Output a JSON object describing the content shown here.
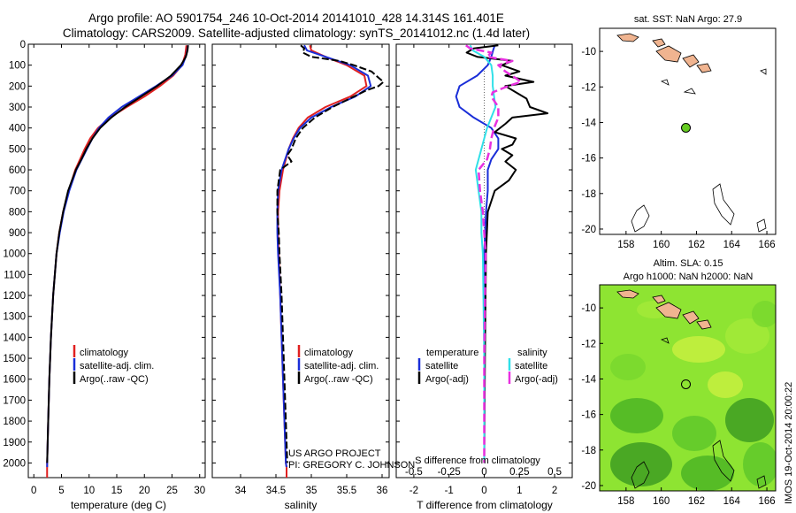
{
  "header": {
    "line1": "Argo profile: AO 5901754_246 10-Oct-2014 20141010_428 14.314S 161.401E",
    "line2": "Climatology: CARS2009. Satellite-adjusted climatology: synTS_20141012.nc (1.4d later)"
  },
  "colors": {
    "climatology": "#e02020",
    "satellite": "#1a2ed8",
    "argo": "#000000",
    "sat_salinity": "#30e0e8",
    "argo_salinity": "#e830e0",
    "land": "#f0b490",
    "marker_fill": "#66cc22"
  },
  "chart_data": [
    {
      "type": "line",
      "id": "temperature",
      "xlabel": "temperature (deg C)",
      "xlim": [
        -1,
        31
      ],
      "xticks": [
        0,
        5,
        10,
        15,
        20,
        25,
        30
      ],
      "ylim": [
        2070,
        0
      ],
      "yticks": [
        0,
        100,
        200,
        300,
        400,
        500,
        600,
        700,
        800,
        900,
        1000,
        1100,
        1200,
        1300,
        1400,
        1500,
        1600,
        1700,
        1800,
        1900,
        2000
      ],
      "legend": [
        "climatology",
        "satellite-adj. clim.",
        "Argo(..raw -QC)"
      ],
      "series": [
        {
          "name": "climatology",
          "color": "climatology",
          "depth": [
            5,
            50,
            100,
            150,
            200,
            250,
            300,
            350,
            400,
            450,
            500,
            600,
            700,
            800,
            900,
            1000,
            1200,
            1400,
            1600,
            1800,
            2000,
            2020
          ],
          "values": [
            27.6,
            27.4,
            26.8,
            25.2,
            22.8,
            20.0,
            16.8,
            13.8,
            11.6,
            10.2,
            9.2,
            7.5,
            6.3,
            5.3,
            4.6,
            4.1,
            3.5,
            3.1,
            2.8,
            2.6,
            2.4,
            2.4
          ]
        },
        {
          "name": "satellite-adj. clim.",
          "color": "satellite",
          "depth": [
            5,
            50,
            100,
            150,
            200,
            250,
            300,
            350,
            400,
            450,
            500,
            600,
            700,
            800,
            900,
            1000,
            1200,
            1400,
            1600,
            1800,
            2000,
            2020
          ],
          "values": [
            27.9,
            27.6,
            26.9,
            25.0,
            22.1,
            19.0,
            15.9,
            13.5,
            11.8,
            10.6,
            9.6,
            7.7,
            6.4,
            5.4,
            4.7,
            4.1,
            3.5,
            3.1,
            2.8,
            2.6,
            2.4,
            2.4
          ]
        },
        {
          "name": "Argo(..raw -QC)",
          "color": "argo",
          "depth": [
            5,
            30,
            60,
            100,
            150,
            200,
            250,
            300,
            350,
            400,
            450,
            500,
            550,
            600,
            700,
            800,
            900,
            1000,
            1200,
            1400,
            1600,
            1800,
            2000
          ],
          "values": [
            27.9,
            27.8,
            27.5,
            26.6,
            24.8,
            22.3,
            19.4,
            16.5,
            14.0,
            12.0,
            10.6,
            9.5,
            8.6,
            7.6,
            6.2,
            5.3,
            4.6,
            4.1,
            3.5,
            3.1,
            2.8,
            2.6,
            2.4
          ]
        }
      ]
    },
    {
      "type": "line",
      "id": "salinity",
      "xlabel": "salinity",
      "xlim": [
        33.6,
        36.1
      ],
      "xticks": [
        34,
        34.5,
        35,
        35.5,
        36
      ],
      "ylim": [
        2070,
        0
      ],
      "legend": [
        "climatology",
        "satellite-adj. clim.",
        "Argo(..raw -QC)"
      ],
      "annotation": [
        "US ARGO PROJECT",
        "PI: GREGORY C. JOHNSON"
      ],
      "series": [
        {
          "name": "climatology",
          "color": "climatology",
          "depth": [
            5,
            30,
            60,
            100,
            150,
            200,
            250,
            300,
            350,
            400,
            450,
            500,
            600,
            700,
            800,
            900,
            1000,
            1200,
            1400,
            1600,
            1800,
            2000,
            2020
          ],
          "values": [
            34.98,
            35.0,
            35.2,
            35.5,
            35.75,
            35.78,
            35.55,
            35.2,
            34.95,
            34.82,
            34.74,
            34.68,
            34.6,
            34.55,
            34.53,
            34.53,
            34.54,
            34.56,
            34.58,
            34.6,
            34.62,
            34.64,
            34.65
          ]
        },
        {
          "name": "satellite-adj. clim.",
          "color": "satellite",
          "depth": [
            5,
            30,
            60,
            100,
            150,
            200,
            250,
            300,
            350,
            400,
            450,
            500,
            600,
            700,
            800,
            900,
            1000,
            1200,
            1400,
            1600,
            1800,
            2000,
            2020
          ],
          "values": [
            34.9,
            34.94,
            35.2,
            35.55,
            35.8,
            35.84,
            35.62,
            35.28,
            35.0,
            34.84,
            34.75,
            34.68,
            34.58,
            34.53,
            34.52,
            34.52,
            34.53,
            34.56,
            34.58,
            34.6,
            34.62,
            34.64,
            34.65
          ]
        },
        {
          "name": "Argo(..raw -QC)",
          "color": "argo",
          "depth": [
            5,
            20,
            40,
            60,
            80,
            100,
            130,
            160,
            180,
            200,
            220,
            250,
            300,
            350,
            400,
            450,
            500,
            530,
            560,
            600,
            700,
            800,
            900,
            1000,
            1200,
            1400,
            1600,
            1800,
            2000
          ],
          "values": [
            34.85,
            34.9,
            34.88,
            35.0,
            35.4,
            35.6,
            35.85,
            35.95,
            36.02,
            35.95,
            35.78,
            35.6,
            35.3,
            35.05,
            34.88,
            34.78,
            34.72,
            34.66,
            34.72,
            34.56,
            34.52,
            34.52,
            34.54,
            34.55,
            34.58,
            34.6,
            34.62,
            34.64,
            34.66
          ]
        }
      ]
    },
    {
      "type": "line",
      "id": "difference",
      "xlabel": "T difference from climatology",
      "xlabel_top": "S difference from climatology",
      "xlim": [
        -2.5,
        2.5
      ],
      "xticks": [
        -2,
        -1,
        0,
        1,
        2
      ],
      "xticks_s": [
        -0.5,
        -0.25,
        0,
        0.25,
        0.5
      ],
      "xtick_labels_s": [
        "-0.5",
        "-0.25",
        "0",
        "0.25",
        "0.5"
      ],
      "ylim": [
        2070,
        0
      ],
      "legend": {
        "left_head": "temperature",
        "right_head": "salinity",
        "left": [
          "satellite",
          "Argo(-adj)"
        ],
        "right": [
          "satellite",
          "Argo(-adj)"
        ]
      },
      "series": [
        {
          "name": "T satellite",
          "color": "satellite",
          "depth": [
            5,
            30,
            60,
            100,
            150,
            200,
            250,
            300,
            350,
            400,
            450,
            500,
            550,
            600,
            700,
            800,
            1000,
            1500,
            2000
          ],
          "values": [
            0.3,
            0.25,
            0.2,
            0.1,
            -0.2,
            -0.7,
            -0.8,
            -0.7,
            -0.3,
            0.2,
            0.4,
            0.4,
            0.2,
            0.1,
            0.1,
            0.05,
            0.0,
            0.0,
            0.0
          ]
        },
        {
          "name": "T Argo",
          "color": "argo",
          "depth": [
            5,
            20,
            40,
            60,
            80,
            100,
            130,
            150,
            180,
            200,
            230,
            260,
            300,
            330,
            350,
            380,
            420,
            450,
            480,
            500,
            530,
            560,
            600,
            650,
            700,
            800,
            1000,
            1500,
            2000
          ],
          "values": [
            0.4,
            -0.3,
            -0.5,
            -0.2,
            0.8,
            0.5,
            1.0,
            0.6,
            1.4,
            0.6,
            0.9,
            1.2,
            1.3,
            1.8,
            0.8,
            0.6,
            0.3,
            0.9,
            0.8,
            0.5,
            0.8,
            0.6,
            0.9,
            0.7,
            0.3,
            0.1,
            0.05,
            0.02,
            0.0
          ]
        },
        {
          "name": "S satellite",
          "color": "sat_salinity",
          "depth": [
            5,
            30,
            60,
            100,
            150,
            200,
            300,
            400,
            500,
            600,
            700,
            800,
            900,
            1000,
            1500,
            2000
          ],
          "values": [
            -0.1,
            -0.08,
            0.0,
            0.05,
            0.06,
            0.06,
            0.08,
            0.02,
            -0.02,
            -0.06,
            -0.04,
            -0.02,
            -0.02,
            -0.01,
            0.0,
            0.0
          ]
        },
        {
          "name": "S Argo",
          "color": "argo_salinity",
          "depth": [
            5,
            20,
            40,
            60,
            80,
            100,
            130,
            160,
            180,
            200,
            230,
            250,
            300,
            350,
            400,
            450,
            500,
            550,
            600,
            700,
            800,
            1000,
            1500,
            2000
          ],
          "values": [
            -0.13,
            -0.1,
            0.05,
            0.02,
            0.2,
            0.1,
            0.15,
            0.22,
            0.26,
            0.17,
            0.06,
            0.05,
            0.1,
            0.1,
            0.07,
            0.05,
            0.04,
            0.02,
            -0.04,
            -0.03,
            -0.01,
            0.01,
            0.0,
            0.0
          ]
        }
      ]
    },
    {
      "type": "map",
      "id": "sst-map",
      "title": "sat. SST: NaN Argo: 27.9",
      "xlim": [
        156.5,
        166.5
      ],
      "ylim": [
        -20.3,
        -8.7
      ],
      "xticks": [
        158,
        160,
        162,
        164,
        166
      ],
      "yticks": [
        -10,
        -12,
        -14,
        -16,
        -18,
        -20
      ],
      "marker": {
        "lon": 161.4,
        "lat": -14.3
      }
    },
    {
      "type": "heatmap",
      "id": "sla-map",
      "title": [
        "Altim. SLA: 0.15",
        "Argo h1000: NaN h2000: NaN"
      ],
      "xlim": [
        156.5,
        166.5
      ],
      "ylim": [
        -20.3,
        -8.7
      ],
      "xticks": [
        158,
        160,
        162,
        164,
        166
      ],
      "yticks": [
        -10,
        -12,
        -14,
        -16,
        -18,
        -20
      ],
      "marker": {
        "lon": 161.4,
        "lat": -14.3
      }
    }
  ],
  "footer": {
    "timestamp": "IMOS 19-Oct-2014 20:00:22"
  }
}
